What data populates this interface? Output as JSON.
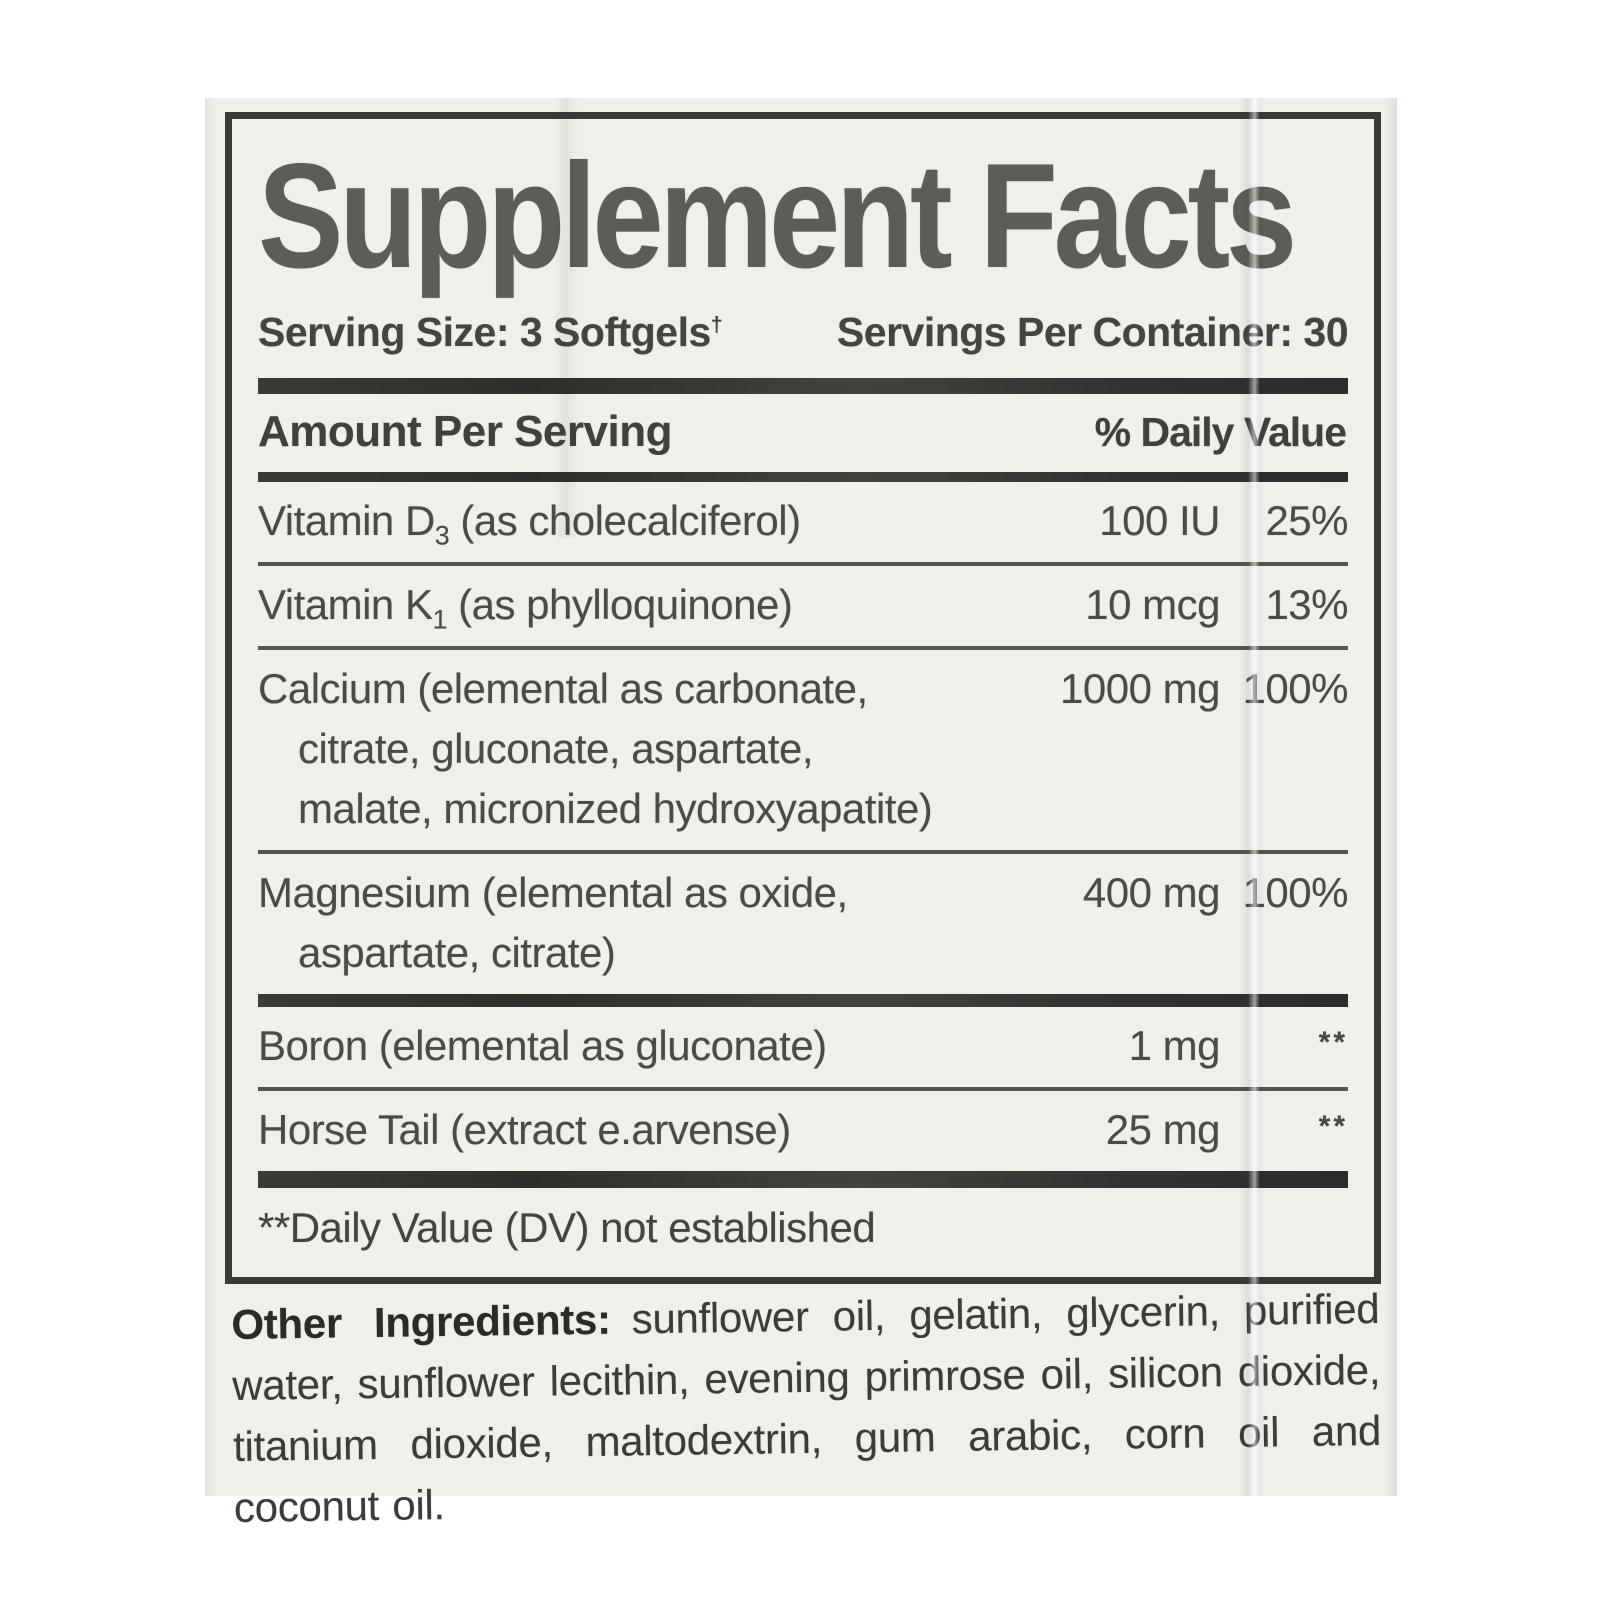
{
  "title": "Supplement Facts",
  "serving": {
    "size": "Serving Size: 3 Softgels",
    "dagger": "†",
    "container": "Servings Per Container: 30"
  },
  "table": {
    "amount_header": "Amount Per Serving",
    "dv_header": "% Daily Value",
    "rows": [
      {
        "name": "Vitamin D",
        "sub": "3",
        "name_rest": " (as cholecalciferol)",
        "amount": "100 IU",
        "dv": "25%"
      },
      {
        "name": "Vitamin K",
        "sub": "1",
        "name_rest": " (as phylloquinone)",
        "amount": "10 mcg",
        "dv": "13%"
      },
      {
        "name": "Calcium (elemental as carbonate,",
        "cont": [
          "citrate, gluconate, aspartate,",
          "malate, micronized hydroxyapatite)"
        ],
        "amount": "1000 mg",
        "dv": "100%"
      },
      {
        "name": "Magnesium (elemental as oxide,",
        "cont": [
          "aspartate, citrate)"
        ],
        "amount": "400 mg",
        "dv": "100%"
      },
      {
        "name": "Boron (elemental as gluconate)",
        "amount": "1 mg",
        "dv": "**"
      },
      {
        "name": "Horse Tail (extract e.arvense)",
        "amount": "25 mg",
        "dv": "**"
      }
    ],
    "footnote": "**Daily Value (DV) not established"
  },
  "other_ingredients": {
    "label": "Other Ingredients:",
    "text": "sunflower oil, gelatin, glycerin, purified water, sunflower lecithin, evening primrose oil, silicon dioxide, titanium dioxide, maltodextrin, gum arabic, corn oil and coconut oil."
  },
  "colors": {
    "label_background": "#f0efec",
    "box_border": "#3b3936",
    "divider_bar": "#34322f",
    "body_text": "#4c4a46",
    "title_text": "#5d5c58"
  }
}
